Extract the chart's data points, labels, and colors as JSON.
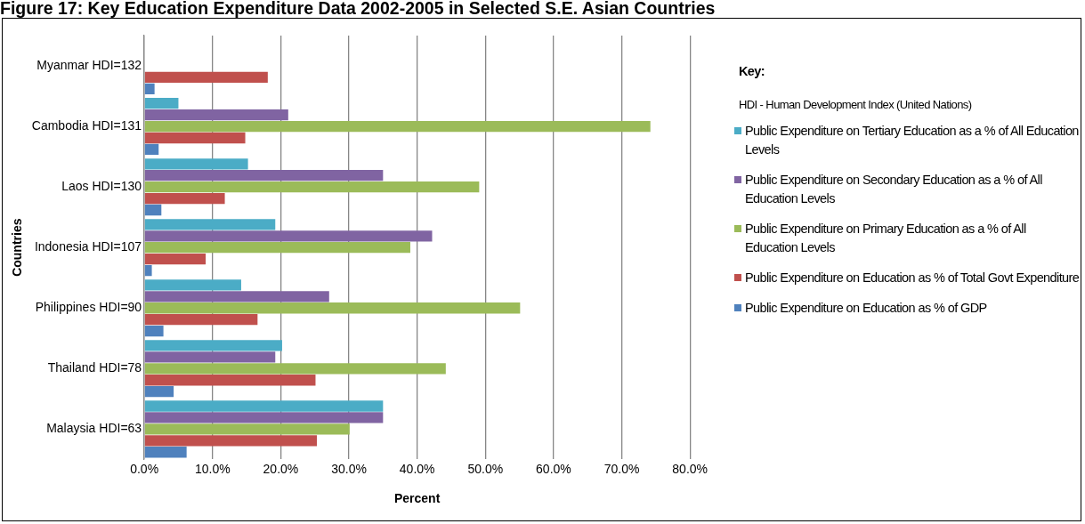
{
  "chart_data": {
    "type": "bar",
    "orientation": "horizontal",
    "title": "Figure 17: Key Education Expenditure Data 2002-2005 in Selected S.E. Asian Countries",
    "xlabel": "Percent",
    "ylabel": "Countries",
    "legend_title": "Key:",
    "annotations": [
      "HDI - Human Development Index (United Nations)"
    ],
    "categories": [
      "Myanmar HDI=132",
      "Cambodia HDI=131",
      "Laos HDI=130",
      "Indonesia HDI=107",
      "Philippines HDI=90",
      "Thailand HDI=78",
      "Malaysia HDI=63"
    ],
    "series": [
      {
        "name": "Public Expenditure on Tertiary Education as a % of All Education Levels",
        "color": "#4bacc6",
        "values": [
          null,
          5.0,
          15.2,
          19.2,
          14.2,
          20.2,
          35.0
        ]
      },
      {
        "name": "Public Expenditure on Secondary Education as a % of All Education Levels",
        "color": "#8064a2",
        "values": [
          null,
          21.1,
          35.0,
          42.2,
          27.1,
          19.2,
          35.0
        ]
      },
      {
        "name": "Public Expenditure on Primary Education as a % of All Education Levels",
        "color": "#9bbb59",
        "values": [
          null,
          74.2,
          49.1,
          39.0,
          55.1,
          44.2,
          30.1
        ]
      },
      {
        "name": "Public Expenditure on Education as % of Total Govt Expenditure",
        "color": "#c0504d",
        "values": [
          18.1,
          14.8,
          11.8,
          9.0,
          16.6,
          25.1,
          25.3
        ]
      },
      {
        "name": "Public Expenditure on Education as % of GDP",
        "color": "#4f81bd",
        "values": [
          1.5,
          2.1,
          2.5,
          1.1,
          2.8,
          4.3,
          6.2
        ]
      }
    ],
    "xlim": [
      0,
      80
    ],
    "xticks": [
      {
        "value": 0,
        "label": "0.0%"
      },
      {
        "value": 10,
        "label": "10.0%"
      },
      {
        "value": 20,
        "label": "20.0%"
      },
      {
        "value": 30,
        "label": "30.0%"
      },
      {
        "value": 40,
        "label": "40.0%"
      },
      {
        "value": 50,
        "label": "50.0%"
      },
      {
        "value": 60,
        "label": "60.0%"
      },
      {
        "value": 70,
        "label": "70.0%"
      },
      {
        "value": 80,
        "label": "80.0%"
      }
    ],
    "grid": "x",
    "legend": "right"
  }
}
